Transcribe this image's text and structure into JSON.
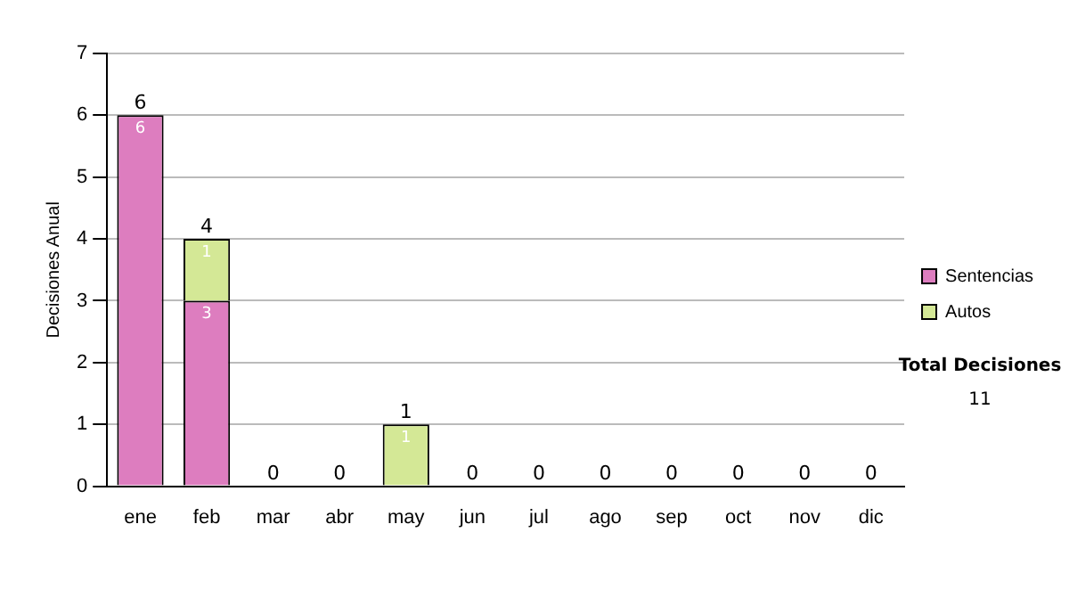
{
  "chart_data": {
    "type": "bar",
    "stacked": true,
    "ylabel": "Decisiones Anual",
    "categories": [
      "ene",
      "feb",
      "mar",
      "abr",
      "may",
      "jun",
      "jul",
      "ago",
      "sep",
      "oct",
      "nov",
      "dic"
    ],
    "series": [
      {
        "name": "Sentencias",
        "color": "#dd7dbf",
        "values": [
          6,
          3,
          0,
          0,
          0,
          0,
          0,
          0,
          0,
          0,
          0,
          0
        ],
        "value_labels": [
          "6",
          "3",
          null,
          null,
          null,
          null,
          null,
          null,
          null,
          null,
          null,
          null
        ]
      },
      {
        "name": "Autos",
        "color": "#d4e896",
        "values": [
          0,
          1,
          0,
          0,
          1,
          0,
          0,
          0,
          0,
          0,
          0,
          0
        ],
        "value_labels": [
          null,
          "1",
          null,
          null,
          "1",
          null,
          null,
          null,
          null,
          null,
          null,
          null
        ]
      }
    ],
    "totals": [
      "6",
      "4",
      "0",
      "0",
      "1",
      "0",
      "0",
      "0",
      "0",
      "0",
      "0",
      "0"
    ],
    "ylim": [
      0,
      7
    ],
    "yticks": [
      0,
      1,
      2,
      3,
      4,
      5,
      6,
      7
    ],
    "grid": "y",
    "legend": "right",
    "annotations": [
      "Total Decisiones",
      "11"
    ]
  }
}
